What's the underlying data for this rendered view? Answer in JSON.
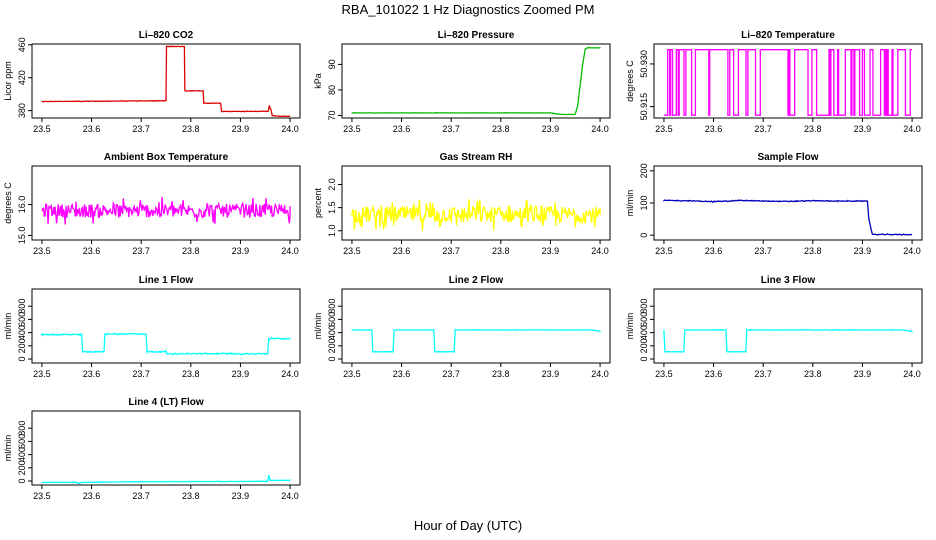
{
  "figure": {
    "title": "RBA_101022  1 Hz Diagnostics Zoomed PM",
    "xlabel": "Hour of Day (UTC)"
  },
  "chart_data": [
    {
      "type": "line",
      "title": "Li–820 CO2",
      "ylabel": "Licor ppm",
      "color": "#dd0000",
      "xlim": [
        23.48,
        24.02
      ],
      "ylim": [
        371,
        461
      ],
      "xticks": [
        23.5,
        23.6,
        23.7,
        23.8,
        23.9,
        24.0
      ],
      "xtick_labels": [
        "23.5",
        "23.6",
        "23.7",
        "23.8",
        "23.9",
        "24.0"
      ],
      "yticks": [
        380,
        420,
        460
      ],
      "ytick_labels": [
        "380",
        "420",
        "460"
      ],
      "noise": 0.5,
      "series": [
        {
          "x": [
            23.5,
            23.75,
            23.751,
            23.76,
            23.76,
            23.787,
            23.788,
            23.825,
            23.826,
            23.86,
            23.862,
            23.875,
            23.93,
            23.956,
            23.958,
            23.962,
            23.964,
            23.98,
            24.0
          ],
          "y": [
            391,
            392,
            458,
            458,
            458,
            458,
            404,
            404,
            389,
            389,
            379,
            379,
            379,
            379,
            386,
            380,
            374,
            373,
            373
          ]
        }
      ]
    },
    {
      "type": "line",
      "title": "Li–820 Pressure",
      "ylabel": "kPa",
      "color": "#00bb00",
      "xlim": [
        23.48,
        24.02
      ],
      "ylim": [
        69,
        98
      ],
      "xticks": [
        23.5,
        23.6,
        23.7,
        23.8,
        23.9,
        24.0
      ],
      "xtick_labels": [
        "23.5",
        "23.6",
        "23.7",
        "23.8",
        "23.9",
        "24.0"
      ],
      "yticks": [
        70,
        80,
        90
      ],
      "ytick_labels": [
        "70",
        "80",
        "90"
      ],
      "noise": 0.08,
      "series": [
        {
          "x": [
            23.5,
            23.9,
            23.92,
            23.95,
            23.955,
            23.965,
            23.97,
            23.975,
            24.0
          ],
          "y": [
            71.0,
            71.0,
            70.4,
            70.4,
            74,
            90,
            96,
            96.5,
            96.5
          ]
        }
      ]
    },
    {
      "type": "line",
      "title": "Li–820 Temperature",
      "ylabel": "degrees C",
      "color": "#ff00ff",
      "xlim": [
        23.48,
        24.02
      ],
      "ylim": [
        50.911,
        50.937
      ],
      "xticks": [
        23.5,
        23.6,
        23.7,
        23.8,
        23.9,
        24.0
      ],
      "xtick_labels": [
        "23.5",
        "23.6",
        "23.7",
        "23.8",
        "23.9",
        "24.0"
      ],
      "yticks": [
        50.915,
        50.93
      ],
      "ytick_labels": [
        "50.915",
        "50.930"
      ],
      "levels": [
        50.912,
        50.935
      ],
      "switch_prob": 0.22,
      "series": [
        {
          "x": [
            23.5,
            24.0
          ],
          "y": [
            50.912,
            50.935
          ]
        }
      ]
    },
    {
      "type": "line",
      "title": "Ambient Box Temperature",
      "ylabel": "degrees C",
      "color": "#ff00ff",
      "xlim": [
        23.48,
        24.02
      ],
      "ylim": [
        14.85,
        17.25
      ],
      "xticks": [
        23.5,
        23.6,
        23.7,
        23.8,
        23.9,
        24.0
      ],
      "xtick_labels": [
        "23.5",
        "23.6",
        "23.7",
        "23.8",
        "23.9",
        "24.0"
      ],
      "yticks": [
        15.0,
        16.0
      ],
      "ytick_labels": [
        "15.0",
        "16.0"
      ],
      "noise": 0.45,
      "series": [
        {
          "x": [
            23.5,
            24.0
          ],
          "y": [
            15.8,
            15.8
          ]
        }
      ]
    },
    {
      "type": "line",
      "title": "Gas Stream RH",
      "ylabel": "percent",
      "color": "#ffff00",
      "xlim": [
        23.48,
        24.02
      ],
      "ylim": [
        0.8,
        2.4
      ],
      "xticks": [
        23.5,
        23.6,
        23.7,
        23.8,
        23.9,
        24.0
      ],
      "xtick_labels": [
        "23.5",
        "23.6",
        "23.7",
        "23.8",
        "23.9",
        "24.0"
      ],
      "yticks": [
        1.0,
        1.5,
        2.0
      ],
      "ytick_labels": [
        "1.0",
        "1.5",
        "2.0"
      ],
      "noise": 0.35,
      "series": [
        {
          "x": [
            23.5,
            24.0
          ],
          "y": [
            1.35,
            1.35
          ]
        }
      ]
    },
    {
      "type": "line",
      "title": "Sample Flow",
      "ylabel": "ml/min",
      "color": "#0000bb",
      "xlim": [
        23.48,
        24.02
      ],
      "ylim": [
        -15,
        215
      ],
      "xticks": [
        23.5,
        23.6,
        23.7,
        23.8,
        23.9,
        24.0
      ],
      "xtick_labels": [
        "23.5",
        "23.6",
        "23.7",
        "23.8",
        "23.9",
        "24.0"
      ],
      "yticks": [
        0,
        100,
        200
      ],
      "ytick_labels": [
        "0",
        "100",
        "200"
      ],
      "noise": 2,
      "series": [
        {
          "x": [
            23.5,
            23.55,
            23.6,
            23.65,
            23.7,
            23.75,
            23.8,
            23.85,
            23.9,
            23.91,
            23.913,
            23.92,
            24.0
          ],
          "y": [
            108,
            107,
            104,
            108,
            106,
            105,
            107,
            106,
            106,
            106,
            50,
            2,
            2
          ]
        }
      ]
    },
    {
      "type": "line",
      "title": "Line 1 Flow",
      "ylabel": "ml/min",
      "color": "#00ffff",
      "xlim": [
        23.48,
        24.02
      ],
      "ylim": [
        -60,
        1060
      ],
      "xticks": [
        23.5,
        23.6,
        23.7,
        23.8,
        23.9,
        24.0
      ],
      "xtick_labels": [
        "23.5",
        "23.6",
        "23.7",
        "23.8",
        "23.9",
        "24.0"
      ],
      "yticks": [
        0,
        200,
        400,
        600,
        800
      ],
      "ytick_labels": [
        "0",
        "200",
        "400",
        "600",
        "800"
      ],
      "noise": 15,
      "series": [
        {
          "x": [
            23.5,
            23.58,
            23.582,
            23.625,
            23.627,
            23.71,
            23.712,
            23.75,
            23.752,
            23.955,
            23.957,
            24.0
          ],
          "y": [
            370,
            370,
            110,
            110,
            380,
            380,
            110,
            110,
            80,
            80,
            310,
            310
          ]
        }
      ]
    },
    {
      "type": "line",
      "title": "Line 2 Flow",
      "ylabel": "ml/min",
      "color": "#00ffff",
      "xlim": [
        23.48,
        24.02
      ],
      "ylim": [
        -60,
        1060
      ],
      "xticks": [
        23.5,
        23.6,
        23.7,
        23.8,
        23.9,
        24.0
      ],
      "xtick_labels": [
        "23.5",
        "23.6",
        "23.7",
        "23.8",
        "23.9",
        "24.0"
      ],
      "yticks": [
        0,
        200,
        400,
        600,
        800
      ],
      "ytick_labels": [
        "0",
        "200",
        "400",
        "600",
        "800"
      ],
      "noise": 6,
      "series": [
        {
          "x": [
            23.5,
            23.54,
            23.542,
            23.583,
            23.585,
            23.665,
            23.667,
            23.706,
            23.708,
            23.98,
            24.0
          ],
          "y": [
            440,
            440,
            110,
            110,
            440,
            440,
            110,
            110,
            440,
            440,
            420
          ]
        }
      ]
    },
    {
      "type": "line",
      "title": "Line 3 Flow",
      "ylabel": "ml/min",
      "color": "#00ffff",
      "xlim": [
        23.48,
        24.02
      ],
      "ylim": [
        -60,
        1060
      ],
      "xticks": [
        23.5,
        23.6,
        23.7,
        23.8,
        23.9,
        24.0
      ],
      "xtick_labels": [
        "23.5",
        "23.6",
        "23.7",
        "23.8",
        "23.9",
        "24.0"
      ],
      "yticks": [
        0,
        200,
        400,
        600,
        800
      ],
      "ytick_labels": [
        "0",
        "200",
        "400",
        "600",
        "800"
      ],
      "noise": 6,
      "series": [
        {
          "x": [
            23.5,
            23.502,
            23.54,
            23.542,
            23.625,
            23.627,
            23.665,
            23.667,
            23.98,
            24.0
          ],
          "y": [
            440,
            110,
            110,
            440,
            440,
            110,
            110,
            440,
            440,
            420
          ]
        }
      ]
    },
    {
      "type": "line",
      "title": "Line 4 (LT) Flow",
      "ylabel": "ml/min",
      "color": "#00ffff",
      "xlim": [
        23.48,
        24.02
      ],
      "ylim": [
        -60,
        1060
      ],
      "xticks": [
        23.5,
        23.6,
        23.7,
        23.8,
        23.9,
        24.0
      ],
      "xtick_labels": [
        "23.5",
        "23.6",
        "23.7",
        "23.8",
        "23.9",
        "24.0"
      ],
      "yticks": [
        0,
        200,
        400,
        600,
        800
      ],
      "ytick_labels": [
        "0",
        "200",
        "400",
        "600",
        "800"
      ],
      "noise": 5,
      "series": [
        {
          "x": [
            23.5,
            23.57,
            23.575,
            23.58,
            23.7,
            23.955,
            23.957,
            23.96,
            24.0
          ],
          "y": [
            -20,
            -20,
            -40,
            -20,
            -10,
            -5,
            90,
            10,
            10
          ]
        }
      ]
    }
  ]
}
